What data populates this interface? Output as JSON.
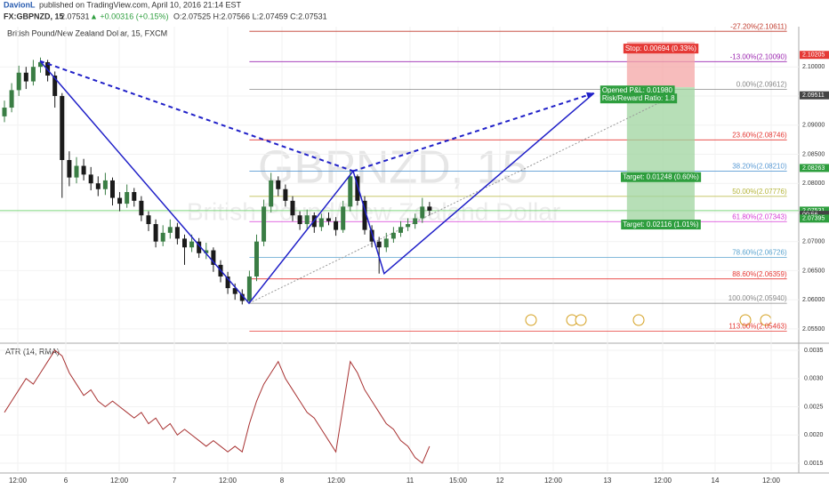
{
  "header": {
    "publisher": "DavionL",
    "published": "published on TradingView.com, April 10, 2016 21:14 EST",
    "symbol": "FX:GBPNZD, 15",
    "last": "2.07531",
    "change": "▲ +0.00316 (+0.15%)",
    "ohlc": "O:2.07525 H:2.07566 L:2.07459 C:2.07531"
  },
  "chart_data": [
    {
      "type": "candlestick",
      "title": "British Pound/New Zealand Dollar, 15, FXCM",
      "watermark": "GBPNZD, 15",
      "watermark_sub": "British Pound/New Zealand Dollar",
      "up_color": "#3a7d44",
      "down_color": "#1a1a1a",
      "x": [
        0,
        1,
        2,
        3,
        4,
        5,
        6,
        7,
        8,
        9,
        10,
        11,
        12,
        13,
        14,
        15,
        16,
        17,
        18,
        19,
        20,
        21,
        22,
        23,
        24,
        25,
        26,
        27,
        28,
        29,
        30,
        31,
        32,
        33,
        34,
        35,
        36,
        37,
        38,
        39,
        40,
        41,
        42,
        43,
        44,
        45,
        46,
        47,
        48,
        49,
        50,
        51,
        52,
        53,
        54,
        55,
        56,
        57,
        58,
        59
      ],
      "open": [
        2.0915,
        2.093,
        2.096,
        2.099,
        2.0975,
        2.1,
        2.1008,
        2.0985,
        2.095,
        2.084,
        2.081,
        2.083,
        2.0815,
        2.08,
        2.079,
        2.0805,
        2.0775,
        2.0765,
        2.0785,
        2.077,
        2.0745,
        2.073,
        2.07,
        2.0715,
        2.0725,
        2.0705,
        2.069,
        2.07,
        2.068,
        2.0685,
        2.066,
        2.064,
        2.062,
        2.061,
        2.0598,
        2.064,
        2.07,
        2.076,
        2.0805,
        2.079,
        2.077,
        2.0745,
        2.073,
        2.0745,
        2.0725,
        2.074,
        2.0735,
        2.072,
        2.076,
        2.0812,
        2.077,
        2.072,
        2.07,
        2.069,
        2.0705,
        2.0715,
        2.0725,
        2.073,
        2.074,
        2.076
      ],
      "high": [
        2.0942,
        2.0972,
        2.1002,
        2.1,
        2.1012,
        2.1016,
        2.1012,
        2.0992,
        2.0955,
        2.0855,
        2.0845,
        2.0842,
        2.0828,
        2.0812,
        2.0818,
        2.081,
        2.0785,
        2.0798,
        2.0792,
        2.0778,
        2.0752,
        2.0738,
        2.0728,
        2.0738,
        2.0732,
        2.0712,
        2.0712,
        2.0706,
        2.0698,
        2.069,
        2.0668,
        2.0648,
        2.0628,
        2.0618,
        2.065,
        2.0712,
        2.0772,
        2.0818,
        2.0812,
        2.0798,
        2.0778,
        2.0752,
        2.0755,
        2.075,
        2.0748,
        2.075,
        2.0742,
        2.077,
        2.0822,
        2.0815,
        2.0778,
        2.0728,
        2.0708,
        2.0715,
        2.0725,
        2.0735,
        2.074,
        2.0748,
        2.0775,
        2.0768
      ],
      "low": [
        2.0905,
        2.0922,
        2.095,
        2.0962,
        2.0968,
        2.099,
        2.0975,
        2.093,
        2.0775,
        2.0795,
        2.08,
        2.0805,
        2.0788,
        2.0778,
        2.078,
        2.0762,
        2.0752,
        2.0758,
        2.076,
        2.0735,
        2.0718,
        2.069,
        2.0692,
        2.0705,
        2.0695,
        2.066,
        2.0682,
        2.0672,
        2.067,
        2.0648,
        2.063,
        2.061,
        2.06,
        2.0592,
        2.0595,
        2.0632,
        2.0692,
        2.075,
        2.0778,
        2.076,
        2.0735,
        2.072,
        2.0722,
        2.0715,
        2.0718,
        2.0728,
        2.071,
        2.0715,
        2.0752,
        2.0762,
        2.0712,
        2.069,
        2.0645,
        2.0682,
        2.0698,
        2.0708,
        2.0718,
        2.0722,
        2.0732,
        2.0745
      ],
      "close": [
        2.093,
        2.096,
        2.099,
        2.0975,
        2.1,
        2.1008,
        2.0985,
        2.095,
        2.084,
        2.081,
        2.083,
        2.0815,
        2.08,
        2.079,
        2.0805,
        2.0775,
        2.0765,
        2.0785,
        2.077,
        2.0745,
        2.073,
        2.07,
        2.0715,
        2.0725,
        2.0705,
        2.069,
        2.07,
        2.068,
        2.0685,
        2.066,
        2.064,
        2.062,
        2.061,
        2.0598,
        2.064,
        2.07,
        2.076,
        2.0805,
        2.079,
        2.077,
        2.0745,
        2.073,
        2.0745,
        2.0725,
        2.074,
        2.0735,
        2.072,
        2.076,
        2.0812,
        2.077,
        2.072,
        2.07,
        2.069,
        2.0705,
        2.0715,
        2.0725,
        2.073,
        2.074,
        2.076,
        2.0753
      ],
      "xlim": [
        -0.617,
        110.25
      ],
      "ylim": [
        2.0527,
        2.1069
      ],
      "xticks": [
        {
          "value": 1.85,
          "label": "12:00"
        },
        {
          "value": 8.52,
          "label": "6"
        },
        {
          "value": 15.93,
          "label": "12:00"
        },
        {
          "value": 23.58,
          "label": "7"
        },
        {
          "value": 30.99,
          "label": "12:00"
        },
        {
          "value": 38.52,
          "label": "8"
        },
        {
          "value": 46.05,
          "label": "12:00"
        },
        {
          "value": 56.3,
          "label": "11"
        },
        {
          "value": 62.96,
          "label": "15:00"
        },
        {
          "value": 68.77,
          "label": "12"
        },
        {
          "value": 76.17,
          "label": "12:00"
        },
        {
          "value": 83.7,
          "label": "13"
        },
        {
          "value": 91.36,
          "label": "12:00"
        },
        {
          "value": 98.64,
          "label": "14"
        },
        {
          "value": 106.42,
          "label": "12:00"
        }
      ],
      "yticks": [
        {
          "value": 2.055,
          "label": "2.05500"
        },
        {
          "value": 2.06,
          "label": "2.06000"
        },
        {
          "value": 2.065,
          "label": "2.06500"
        },
        {
          "value": 2.07,
          "label": "2.07000"
        },
        {
          "value": 2.075,
          "label": "2.07500"
        },
        {
          "value": 2.08,
          "label": "2.08000"
        },
        {
          "value": 2.085,
          "label": "2.08500"
        },
        {
          "value": 2.09,
          "label": "2.09000"
        },
        {
          "value": 2.095,
          "label": "2.09500"
        },
        {
          "value": 2.1,
          "label": "2.10000"
        }
      ],
      "last_price": 2.07531,
      "last_price_color": "#7ed67e",
      "fib": {
        "x": [
          34,
          108.6
        ],
        "levels": [
          {
            "value": 2.10611,
            "label": "-27.20%(2.10611)",
            "color": "#c0392b"
          },
          {
            "value": 2.1009,
            "label": "-13.00%(2.10090)",
            "color": "#9c27b0"
          },
          {
            "value": 2.09612,
            "label": "0.00%(2.09612)",
            "color": "#888888"
          },
          {
            "value": 2.08746,
            "label": "23.60%(2.08746)",
            "color": "#e53935"
          },
          {
            "value": 2.0821,
            "label": "38.20%(2.08210)",
            "color": "#5b9bd5"
          },
          {
            "value": 2.07776,
            "label": "50.00%(2.07776)",
            "color": "#b5b53a"
          },
          {
            "value": 2.07343,
            "label": "61.80%(2.07343)",
            "color": "#d63ad6"
          },
          {
            "value": 2.06726,
            "label": "78.60%(2.06726)",
            "color": "#5ba4cf"
          },
          {
            "value": 2.06359,
            "label": "88.60%(2.06359)",
            "color": "#e53935"
          },
          {
            "value": 2.0594,
            "label": "100.00%(2.05940)",
            "color": "#888888"
          },
          {
            "value": 2.05463,
            "label": "113.00%(2.05463)",
            "color": "#e53935"
          }
        ]
      },
      "pattern": {
        "color": "#2020c8",
        "x": [
          4.94,
          33.95,
          48.4,
          52.7,
          81.85
        ],
        "y": [
          2.101,
          2.0594,
          2.0821,
          2.0645,
          2.0955
        ]
      },
      "trendline": {
        "x": [
          33.95,
          92
        ],
        "y": [
          2.0594,
          2.0945
        ]
      },
      "position": {
        "x": [
          86.4,
          95.8
        ],
        "stop": 2.1043,
        "entry": 2.0965,
        "target": 2.0724,
        "stop_label": "Stop: 0.00694 (0.33%)",
        "pl_label": "Opened P&L: 0.01980",
        "rr_label": "Risk/Reward Ratio: 1.8",
        "target_label": "Target: 0.01248 (0.60%)",
        "target2_label": "Target: 0.02116 (1.01%)"
      },
      "price_tags": [
        {
          "value": 2.10205,
          "label": "2.10205",
          "color": "#e53935"
        },
        {
          "value": 2.09511,
          "label": "2.09511",
          "color": "#444444"
        },
        {
          "value": 2.08263,
          "label": "2.08263",
          "color": "#2e9e3e"
        },
        {
          "value": 2.07531,
          "label": "2.07531",
          "color": "#2e9e3e"
        },
        {
          "value": 2.0746,
          "label": "00:56",
          "color": "#444444"
        },
        {
          "value": 2.07395,
          "label": "2.07395",
          "color": "#2e9e3e"
        }
      ]
    },
    {
      "type": "line",
      "title": "ATR (14, RMA)",
      "color": "#a83232",
      "x": [
        0,
        1,
        2,
        3,
        4,
        5,
        6,
        7,
        8,
        9,
        10,
        11,
        12,
        13,
        14,
        15,
        16,
        17,
        18,
        19,
        20,
        21,
        22,
        23,
        24,
        25,
        26,
        27,
        28,
        29,
        30,
        31,
        32,
        33,
        34,
        35,
        36,
        37,
        38,
        39,
        40,
        41,
        42,
        43,
        44,
        45,
        46,
        47,
        48,
        49,
        50,
        51,
        52,
        53,
        54,
        55,
        56,
        57,
        58,
        59
      ],
      "values": [
        0.0024,
        0.0026,
        0.0028,
        0.003,
        0.0029,
        0.0031,
        0.0033,
        0.0035,
        0.0034,
        0.0031,
        0.0029,
        0.0027,
        0.0028,
        0.0026,
        0.0025,
        0.0026,
        0.0025,
        0.0024,
        0.0023,
        0.0024,
        0.0022,
        0.0023,
        0.0021,
        0.0022,
        0.002,
        0.0021,
        0.002,
        0.0019,
        0.0018,
        0.0019,
        0.0018,
        0.0017,
        0.0018,
        0.0017,
        0.0022,
        0.0026,
        0.0029,
        0.0031,
        0.0033,
        0.003,
        0.0028,
        0.0026,
        0.0024,
        0.0023,
        0.0021,
        0.0019,
        0.0017,
        0.0025,
        0.0033,
        0.0031,
        0.0028,
        0.0026,
        0.0024,
        0.0022,
        0.0021,
        0.0019,
        0.0018,
        0.0016,
        0.0015,
        0.0018
      ],
      "xlim": [
        -0.617,
        110.25
      ],
      "ylim": [
        0.001358,
        0.003594
      ],
      "yticks": [
        0.0015,
        {
          "value": 0.002,
          "label": "0.0020"
        },
        0.0025,
        {
          "value": 0.003,
          "label": "0.0030"
        },
        0.0035
      ]
    }
  ]
}
